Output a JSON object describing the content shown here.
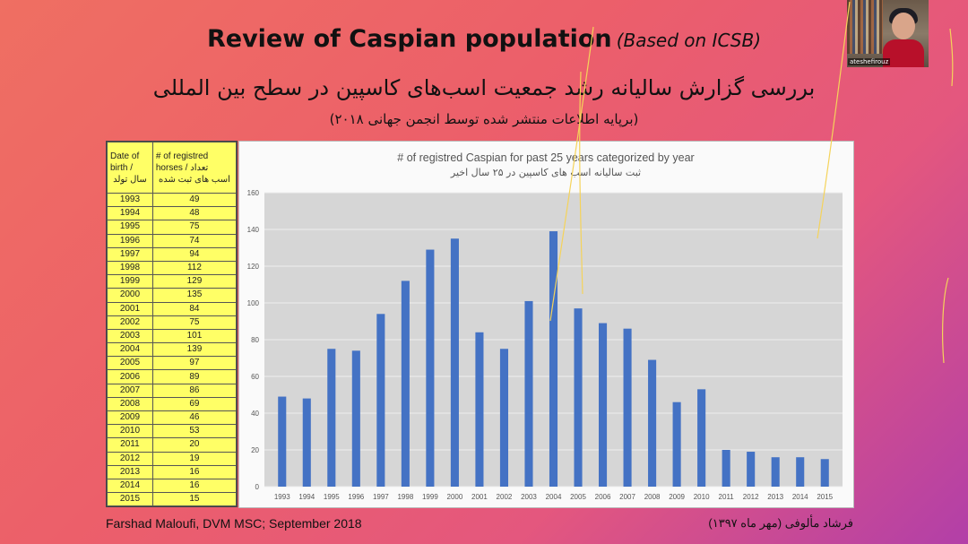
{
  "slide": {
    "title_main": "Review of Caspian population",
    "title_sub": "(Based on ICSB)",
    "subtitle_fa": "بررسی گزارش سالیانه رشد جمعیت اسب‌های کاسپین در سطح بین المللی",
    "subtitle_fa2": "(برپایه اطلاعات منتشر شده توسط انجمن جهانی ۲۰۱۸)",
    "footer_left": "Farshad Maloufi, DVM MSC; September 2018",
    "footer_right": "فرشاد مألوفی (مهر ماه ۱۳۹۷)"
  },
  "table": {
    "col1_header": "Date of birth / سال تولد",
    "col1_header_en": "Date of birth /",
    "col1_header_fa": "سال تولد",
    "col2_header_en": "# of registred horses / تعداد",
    "col2_header_fa": "اسب های ثبت شده"
  },
  "webcam": {
    "name": "ateshefirouz"
  },
  "chart_data": {
    "type": "bar",
    "title": "# of registred Caspian for past 25 years categorized by year",
    "subtitle": "ثبت سالیانه اسب های کاسپین در ۲۵ سال اخیر",
    "categories": [
      "1993",
      "1994",
      "1995",
      "1996",
      "1997",
      "1998",
      "1999",
      "2000",
      "2001",
      "2002",
      "2003",
      "2004",
      "2005",
      "2006",
      "2007",
      "2008",
      "2009",
      "2010",
      "2011",
      "2012",
      "2013",
      "2014",
      "2015"
    ],
    "values": [
      49,
      48,
      75,
      74,
      94,
      112,
      129,
      135,
      84,
      75,
      101,
      139,
      97,
      89,
      86,
      69,
      46,
      53,
      20,
      19,
      16,
      16,
      15
    ],
    "ylim": [
      0,
      160
    ],
    "yticks": [
      0,
      20,
      40,
      60,
      80,
      100,
      120,
      140,
      160
    ],
    "grid": true,
    "bar_color": "#4472c4"
  }
}
